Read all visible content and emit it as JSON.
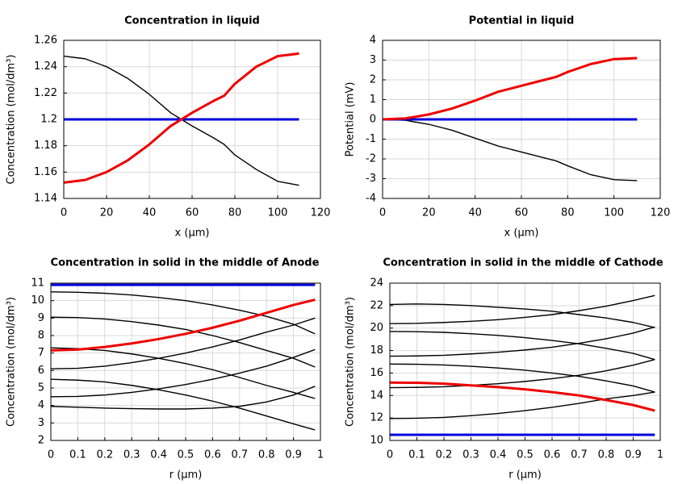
{
  "chart_data": [
    {
      "type": "line",
      "title": "Concentration in liquid",
      "xlabel": "x (µm)",
      "ylabel": "Concentration (mol/dm³)",
      "x": [
        0,
        10,
        20,
        30,
        40,
        50,
        55,
        60,
        70,
        75,
        80,
        90,
        100,
        110
      ],
      "series": [
        {
          "color": "#000000",
          "values": [
            1.248,
            1.246,
            1.24,
            1.231,
            1.219,
            1.205,
            1.2,
            1.195,
            1.186,
            1.181,
            1.173,
            1.162,
            1.153,
            1.15
          ]
        },
        {
          "color": "#0000dd",
          "values": [
            1.2,
            1.2,
            1.2,
            1.2,
            1.2,
            1.2,
            1.2,
            1.2,
            1.2,
            1.2,
            1.2,
            1.2,
            1.2,
            1.2
          ]
        },
        {
          "color": "#ee0000",
          "values": [
            1.152,
            1.154,
            1.16,
            1.169,
            1.181,
            1.195,
            1.2,
            1.205,
            1.214,
            1.218,
            1.227,
            1.24,
            1.248,
            1.25
          ]
        }
      ],
      "xlim": [
        0,
        120
      ],
      "xticks": [
        0,
        20,
        40,
        60,
        80,
        100,
        120
      ],
      "ylim": [
        1.14,
        1.26
      ],
      "yticks": [
        1.14,
        1.16,
        1.18,
        1.2,
        1.22,
        1.24,
        1.26
      ],
      "grid": true
    },
    {
      "type": "line",
      "title": "Potential in liquid",
      "xlabel": "x (µm)",
      "ylabel": "Potential (mV)",
      "x": [
        0,
        10,
        20,
        30,
        40,
        50,
        55,
        60,
        70,
        75,
        80,
        90,
        100,
        110
      ],
      "series": [
        {
          "color": "#000000",
          "values": [
            0,
            -0.05,
            -0.25,
            -0.55,
            -0.95,
            -1.35,
            -1.5,
            -1.65,
            -1.95,
            -2.1,
            -2.35,
            -2.8,
            -3.05,
            -3.1
          ]
        },
        {
          "color": "#0000dd",
          "values": [
            0,
            0,
            0,
            0,
            0,
            0,
            0,
            0,
            0,
            0,
            0,
            0,
            0,
            0
          ]
        },
        {
          "color": "#ee0000",
          "values": [
            0,
            0.05,
            0.25,
            0.55,
            0.95,
            1.4,
            1.55,
            1.7,
            2.0,
            2.15,
            2.4,
            2.8,
            3.05,
            3.1
          ]
        }
      ],
      "xlim": [
        0,
        120
      ],
      "xticks": [
        0,
        20,
        40,
        60,
        80,
        100,
        120
      ],
      "ylim": [
        -4,
        4
      ],
      "yticks": [
        -4,
        -3,
        -2,
        -1,
        0,
        1,
        2,
        3,
        4
      ],
      "grid": true
    },
    {
      "type": "line",
      "title": "Concentration in solid in the middle of Anode",
      "xlabel": "r (µm)",
      "ylabel": "Concentration (mol/dm³)",
      "x": [
        0,
        0.1,
        0.2,
        0.3,
        0.4,
        0.5,
        0.6,
        0.7,
        0.8,
        0.9,
        0.98
      ],
      "series": [
        {
          "color": "#000000",
          "values": [
            10.5,
            10.48,
            10.42,
            10.32,
            10.18,
            10.0,
            9.75,
            9.45,
            9.1,
            8.65,
            8.1
          ]
        },
        {
          "color": "#000000",
          "values": [
            9.05,
            9.03,
            8.95,
            8.8,
            8.6,
            8.35,
            8.0,
            7.6,
            7.15,
            6.7,
            6.2
          ]
        },
        {
          "color": "#000000",
          "values": [
            7.3,
            7.25,
            7.15,
            6.95,
            6.7,
            6.4,
            6.05,
            5.6,
            5.15,
            4.75,
            4.4
          ]
        },
        {
          "color": "#000000",
          "values": [
            5.5,
            5.45,
            5.35,
            5.15,
            4.9,
            4.6,
            4.25,
            3.85,
            3.4,
            2.95,
            2.6
          ]
        },
        {
          "color": "#000000",
          "values": [
            3.95,
            3.9,
            3.85,
            3.82,
            3.8,
            3.8,
            3.85,
            3.95,
            4.2,
            4.6,
            5.1
          ]
        },
        {
          "color": "#000000",
          "values": [
            4.5,
            4.52,
            4.6,
            4.75,
            4.95,
            5.2,
            5.5,
            5.85,
            6.25,
            6.75,
            7.2
          ]
        },
        {
          "color": "#000000",
          "values": [
            6.1,
            6.13,
            6.25,
            6.45,
            6.7,
            7.0,
            7.35,
            7.75,
            8.2,
            8.6,
            9.0
          ]
        },
        {
          "color": "#0000dd",
          "values": [
            10.9,
            10.9,
            10.9,
            10.9,
            10.9,
            10.9,
            10.9,
            10.9,
            10.9,
            10.9,
            10.9
          ]
        },
        {
          "color": "#ee0000",
          "values": [
            7.15,
            7.2,
            7.35,
            7.55,
            7.8,
            8.1,
            8.45,
            8.85,
            9.3,
            9.75,
            10.05
          ]
        }
      ],
      "xlim": [
        0,
        1
      ],
      "xticks": [
        0,
        0.1,
        0.2,
        0.3,
        0.4,
        0.5,
        0.6,
        0.7,
        0.8,
        0.9,
        1
      ],
      "ylim": [
        2,
        11
      ],
      "yticks": [
        2,
        3,
        4,
        5,
        6,
        7,
        8,
        9,
        10,
        11
      ],
      "grid": true
    },
    {
      "type": "line",
      "title": "Concentration in solid in the middle of Cathode",
      "xlabel": "r (µm)",
      "ylabel": "Concentration (mol/dm³)",
      "x": [
        0,
        0.1,
        0.2,
        0.3,
        0.4,
        0.5,
        0.6,
        0.7,
        0.8,
        0.9,
        0.98
      ],
      "series": [
        {
          "color": "#000000",
          "values": [
            22.1,
            22.15,
            22.1,
            22.0,
            21.85,
            21.7,
            21.5,
            21.2,
            20.9,
            20.5,
            20.05
          ]
        },
        {
          "color": "#000000",
          "values": [
            20.4,
            20.42,
            20.5,
            20.6,
            20.75,
            20.95,
            21.2,
            21.55,
            21.95,
            22.45,
            22.9
          ]
        },
        {
          "color": "#000000",
          "values": [
            19.7,
            19.68,
            19.62,
            19.5,
            19.35,
            19.15,
            18.9,
            18.6,
            18.2,
            17.75,
            17.2
          ]
        },
        {
          "color": "#000000",
          "values": [
            17.5,
            17.52,
            17.58,
            17.7,
            17.85,
            18.05,
            18.3,
            18.65,
            19.05,
            19.55,
            20.1
          ]
        },
        {
          "color": "#000000",
          "values": [
            16.8,
            16.78,
            16.72,
            16.6,
            16.45,
            16.25,
            16.0,
            15.7,
            15.3,
            14.85,
            14.3
          ]
        },
        {
          "color": "#000000",
          "values": [
            14.7,
            14.72,
            14.78,
            14.9,
            15.05,
            15.25,
            15.5,
            15.8,
            16.2,
            16.7,
            17.2
          ]
        },
        {
          "color": "#000000",
          "values": [
            11.95,
            11.98,
            12.05,
            12.2,
            12.4,
            12.65,
            12.95,
            13.3,
            13.7,
            14.0,
            14.3
          ]
        },
        {
          "color": "#0000dd",
          "values": [
            10.5,
            10.5,
            10.5,
            10.5,
            10.5,
            10.5,
            10.5,
            10.5,
            10.5,
            10.5,
            10.5
          ]
        },
        {
          "color": "#ee0000",
          "values": [
            15.15,
            15.13,
            15.05,
            14.9,
            14.75,
            14.55,
            14.3,
            14.0,
            13.6,
            13.15,
            12.65
          ]
        }
      ],
      "xlim": [
        0,
        1
      ],
      "xticks": [
        0,
        0.1,
        0.2,
        0.3,
        0.4,
        0.5,
        0.6,
        0.7,
        0.8,
        0.9,
        1
      ],
      "ylim": [
        10,
        24
      ],
      "yticks": [
        10,
        12,
        14,
        16,
        18,
        20,
        22,
        24
      ],
      "grid": true
    }
  ]
}
